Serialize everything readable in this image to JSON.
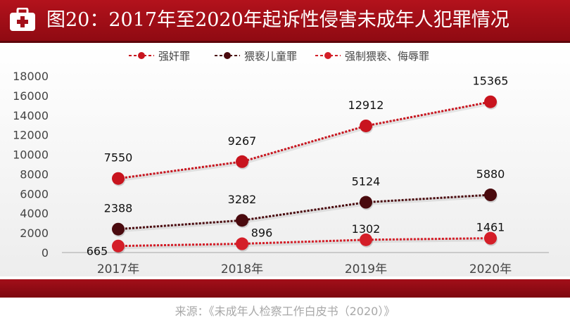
{
  "header": {
    "title": "图20：2017年至2020年起诉性侵害未成年人犯罪情况",
    "icon": "medical-kit-icon"
  },
  "source": "来源：《未成年人检察工作白皮书（2020）》",
  "colors": {
    "header_red": "#a3101a",
    "series_bright_red": "#c8141e",
    "series_dark_red": "#4a0a0e",
    "series_light_red": "#d41e28"
  },
  "chart_data": {
    "type": "line",
    "title": "图20：2017年至2020年起诉性侵害未成年人犯罪情况",
    "xlabel": "",
    "ylabel": "",
    "categories": [
      "2017年",
      "2018年",
      "2019年",
      "2020年"
    ],
    "yticks": [
      "0",
      "2000",
      "4000",
      "6000",
      "8000",
      "10000",
      "12000",
      "14000",
      "16000",
      "18000"
    ],
    "ylim": [
      0,
      18000
    ],
    "grid": false,
    "legend_position": "top",
    "series": [
      {
        "name": "强奸罪",
        "values": [
          7550,
          9267,
          12912,
          15365
        ],
        "labels": [
          "7550",
          "9267",
          "12912",
          "15365"
        ],
        "color": "#c8141e"
      },
      {
        "name": "猥亵儿童罪",
        "values": [
          2388,
          3282,
          5124,
          5880
        ],
        "labels": [
          "2388",
          "3282",
          "5124",
          "5880"
        ],
        "color": "#4a0a0e"
      },
      {
        "name": "强制猥亵、侮辱罪",
        "values": [
          665,
          896,
          1302,
          1461
        ],
        "labels": [
          "665",
          "896",
          "1302",
          "1461"
        ],
        "color": "#d41e28"
      }
    ]
  }
}
